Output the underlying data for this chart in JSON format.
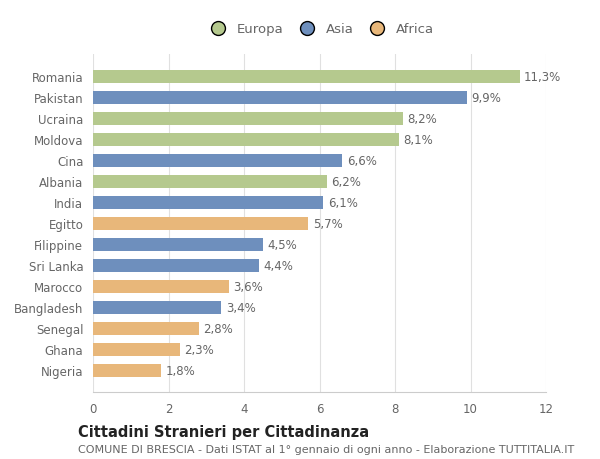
{
  "categories": [
    "Romania",
    "Pakistan",
    "Ucraina",
    "Moldova",
    "Cina",
    "Albania",
    "India",
    "Egitto",
    "Filippine",
    "Sri Lanka",
    "Marocco",
    "Bangladesh",
    "Senegal",
    "Ghana",
    "Nigeria"
  ],
  "values": [
    11.3,
    9.9,
    8.2,
    8.1,
    6.6,
    6.2,
    6.1,
    5.7,
    4.5,
    4.4,
    3.6,
    3.4,
    2.8,
    2.3,
    1.8
  ],
  "continents": [
    "Europa",
    "Asia",
    "Europa",
    "Europa",
    "Asia",
    "Europa",
    "Asia",
    "Africa",
    "Asia",
    "Asia",
    "Africa",
    "Asia",
    "Africa",
    "Africa",
    "Africa"
  ],
  "colors": {
    "Europa": "#b5c98e",
    "Asia": "#6e8fbd",
    "Africa": "#e8b77a"
  },
  "legend_labels": [
    "Europa",
    "Asia",
    "Africa"
  ],
  "title": "Cittadini Stranieri per Cittadinanza",
  "subtitle": "COMUNE DI BRESCIA - Dati ISTAT al 1° gennaio di ogni anno - Elaborazione TUTTITALIA.IT",
  "xlim": [
    0,
    12
  ],
  "xticks": [
    0,
    2,
    4,
    6,
    8,
    10,
    12
  ],
  "bg_color": "#ffffff",
  "bar_height": 0.62,
  "label_fontsize": 8.5,
  "title_fontsize": 10.5,
  "subtitle_fontsize": 8,
  "tick_fontsize": 8.5,
  "legend_fontsize": 9.5
}
